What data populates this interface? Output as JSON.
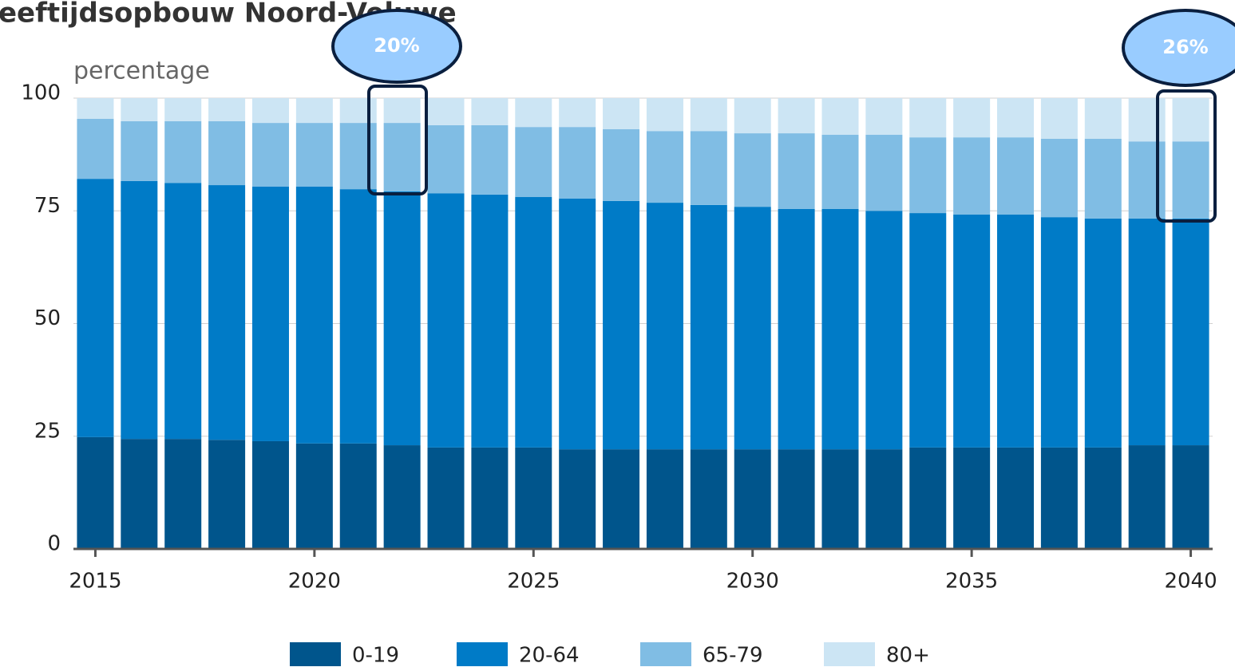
{
  "chart_data": {
    "type": "stacked_bar",
    "title": "eeftijdsopbouw Noord-Veluwe",
    "y_label": "percentage",
    "x": [
      2015,
      2016,
      2017,
      2018,
      2019,
      2020,
      2021,
      2022,
      2023,
      2024,
      2025,
      2026,
      2027,
      2028,
      2029,
      2030,
      2031,
      2032,
      2033,
      2034,
      2035,
      2036,
      2037,
      2038,
      2039,
      2040
    ],
    "series": [
      {
        "name": "0-19",
        "color": "#00558c",
        "values": [
          24.8,
          24.4,
          24.4,
          24.2,
          23.9,
          23.4,
          23.4,
          23.0,
          22.5,
          22.5,
          22.5,
          22.1,
          22.1,
          22.1,
          22.1,
          22.1,
          22.1,
          22.1,
          22.1,
          22.5,
          22.5,
          22.5,
          22.5,
          22.5,
          23.0,
          23.0
        ]
      },
      {
        "name": "20-64",
        "color": "#007bc7",
        "values": [
          57.3,
          57.2,
          56.8,
          56.5,
          56.5,
          57.0,
          56.4,
          56.3,
          56.4,
          56.1,
          55.6,
          55.6,
          55.1,
          54.7,
          54.2,
          53.8,
          53.3,
          53.3,
          52.9,
          52.0,
          51.7,
          51.7,
          51.1,
          50.8,
          50.3,
          50.3
        ]
      },
      {
        "name": "65-79",
        "color": "#80bde4",
        "values": [
          13.3,
          13.3,
          13.7,
          14.2,
          14.1,
          14.1,
          14.7,
          15.2,
          15.1,
          15.4,
          15.5,
          15.9,
          15.9,
          15.9,
          16.4,
          16.3,
          16.8,
          16.5,
          16.9,
          16.8,
          17.1,
          17.1,
          17.4,
          17.7,
          17.1,
          17.1
        ]
      },
      {
        "name": "80+",
        "color": "#cce5f4",
        "values": [
          4.6,
          5.1,
          5.1,
          5.1,
          5.5,
          5.5,
          5.5,
          5.5,
          6.0,
          6.0,
          6.4,
          6.4,
          6.9,
          7.3,
          7.3,
          7.8,
          7.8,
          8.1,
          8.1,
          8.7,
          8.7,
          8.7,
          9.0,
          9.0,
          9.6,
          9.6
        ]
      }
    ],
    "xlim": [
      2014.5,
      2040.5
    ],
    "xticks": [
      2015,
      2020,
      2025,
      2030,
      2035,
      2040
    ],
    "ylim": [
      0,
      100
    ],
    "yticks": [
      0,
      25,
      50,
      75,
      100
    ],
    "grid": true,
    "legend": "bottom",
    "annotations": [
      {
        "text": "20%"
      },
      {
        "text": "26%"
      }
    ]
  }
}
